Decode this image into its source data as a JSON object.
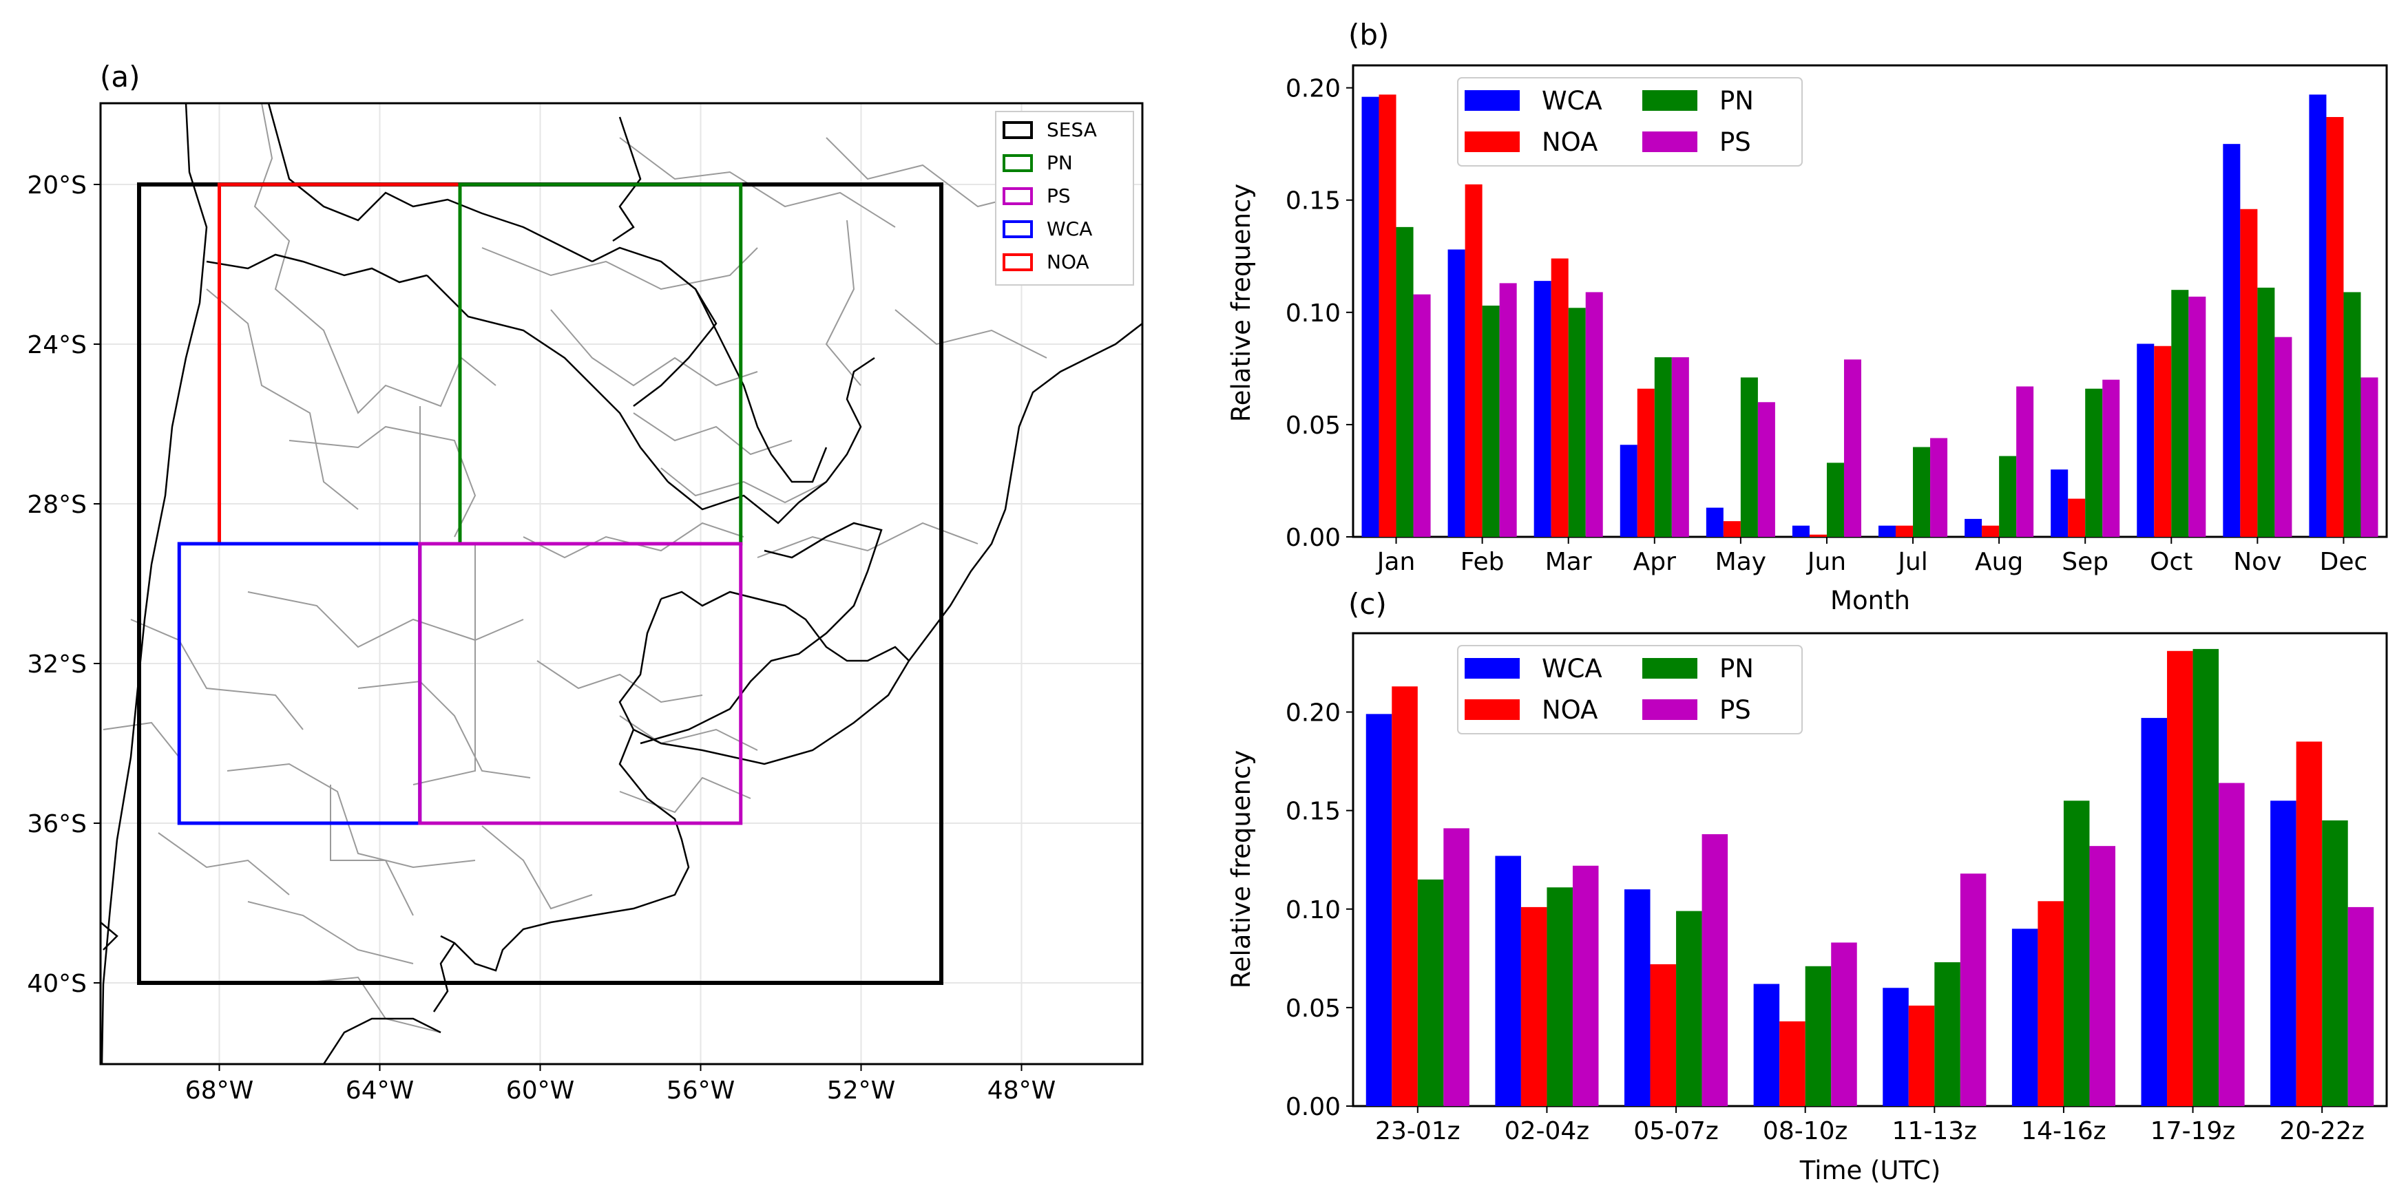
{
  "panels": {
    "a": "(a)",
    "b": "(b)",
    "c": "(c)"
  },
  "colors": {
    "WCA": "#0000ff",
    "NOA": "#ff0000",
    "PN": "#008000",
    "PS": "#bf00bf",
    "SESA": "#000000",
    "borders": "#999999",
    "coast": "#000000"
  },
  "map": {
    "x_ticks": [
      "68°W",
      "64°W",
      "60°W",
      "56°W",
      "52°W",
      "48°W"
    ],
    "y_ticks": [
      "20°S",
      "24°S",
      "28°S",
      "32°S",
      "36°S",
      "40°S"
    ],
    "legend": [
      "SESA",
      "PN",
      "PS",
      "WCA",
      "NOA"
    ],
    "regions": [
      {
        "name": "SESA",
        "lon": [
          -70,
          -50
        ],
        "lat": [
          -40,
          -20
        ]
      },
      {
        "name": "NOA",
        "lon": [
          -68,
          -62
        ],
        "lat": [
          -29,
          -20
        ]
      },
      {
        "name": "PN",
        "lon": [
          -62,
          -55
        ],
        "lat": [
          -29,
          -20
        ]
      },
      {
        "name": "WCA",
        "lon": [
          -69,
          -63
        ],
        "lat": [
          -36,
          -29
        ]
      },
      {
        "name": "PS",
        "lon": [
          -63,
          -55
        ],
        "lat": [
          -36,
          -29
        ]
      }
    ]
  },
  "chart_data": [
    {
      "id": "b",
      "type": "bar",
      "title": "(b)",
      "xlabel": "Month",
      "ylabel": "Relative frequency",
      "ylim": [
        0,
        0.21
      ],
      "yticks": [
        "0.00",
        "0.05",
        "0.10",
        "0.15",
        "0.20"
      ],
      "categories": [
        "Jan",
        "Feb",
        "Mar",
        "Apr",
        "May",
        "Jun",
        "Jul",
        "Aug",
        "Sep",
        "Oct",
        "Nov",
        "Dec"
      ],
      "legend": "upper left, 2 columns",
      "series": [
        {
          "name": "WCA",
          "values": [
            0.196,
            0.128,
            0.114,
            0.041,
            0.013,
            0.005,
            0.005,
            0.008,
            0.03,
            0.086,
            0.175,
            0.197
          ]
        },
        {
          "name": "NOA",
          "values": [
            0.197,
            0.157,
            0.124,
            0.066,
            0.007,
            0.001,
            0.005,
            0.005,
            0.017,
            0.085,
            0.146,
            0.187
          ]
        },
        {
          "name": "PN",
          "values": [
            0.138,
            0.103,
            0.102,
            0.08,
            0.071,
            0.033,
            0.04,
            0.036,
            0.066,
            0.11,
            0.111,
            0.109
          ]
        },
        {
          "name": "PS",
          "values": [
            0.108,
            0.113,
            0.109,
            0.08,
            0.06,
            0.079,
            0.044,
            0.067,
            0.07,
            0.107,
            0.089,
            0.071
          ]
        }
      ]
    },
    {
      "id": "c",
      "type": "bar",
      "title": "(c)",
      "xlabel": "Time (UTC)",
      "ylabel": "Relative frequency",
      "ylim": [
        0,
        0.24
      ],
      "yticks": [
        "0.00",
        "0.05",
        "0.10",
        "0.15",
        "0.20"
      ],
      "categories": [
        "23-01z",
        "02-04z",
        "05-07z",
        "08-10z",
        "11-13z",
        "14-16z",
        "17-19z",
        "20-22z"
      ],
      "legend": "upper left, 2 columns",
      "series": [
        {
          "name": "WCA",
          "values": [
            0.199,
            0.127,
            0.11,
            0.062,
            0.06,
            0.09,
            0.197,
            0.155
          ]
        },
        {
          "name": "NOA",
          "values": [
            0.213,
            0.101,
            0.072,
            0.043,
            0.051,
            0.104,
            0.231,
            0.185
          ]
        },
        {
          "name": "PN",
          "values": [
            0.115,
            0.111,
            0.099,
            0.071,
            0.073,
            0.155,
            0.232,
            0.145
          ]
        },
        {
          "name": "PS",
          "values": [
            0.141,
            0.122,
            0.138,
            0.083,
            0.118,
            0.132,
            0.164,
            0.101
          ]
        }
      ]
    }
  ]
}
